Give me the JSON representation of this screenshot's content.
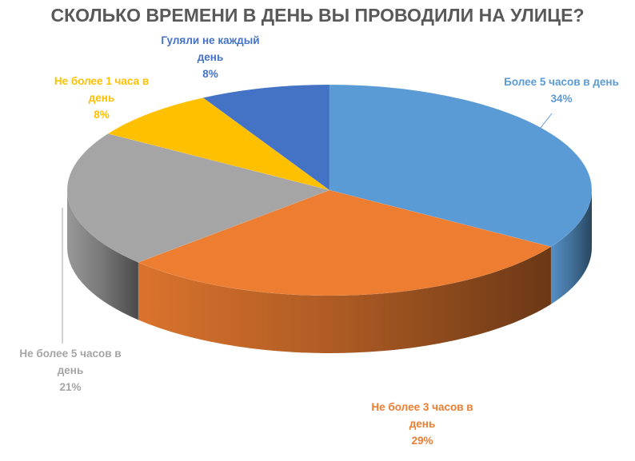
{
  "chart_data": {
    "type": "pie",
    "title": "СКОЛЬКО ВРЕМЕНИ В ДЕНЬ ВЫ ПРОВОДИЛИ НА УЛИЦЕ?",
    "slices": [
      {
        "label": "Более 5 часов в день",
        "value": 34,
        "value_label": "34%",
        "color": "#5B9BD5"
      },
      {
        "label": "Не более 3 часов в день",
        "value": 29,
        "value_label": "29%",
        "color": "#ED7D31"
      },
      {
        "label": "Не более 5 часов в день",
        "value": 21,
        "value_label": "21%",
        "color": "#A5A5A5"
      },
      {
        "label": "Не более 1 часа в день",
        "value": 8,
        "value_label": "8%",
        "color": "#FFC000"
      },
      {
        "label": "Гуляли не каждый день",
        "value": 8,
        "value_label": "8%",
        "color": "#4472C4"
      }
    ],
    "style": "3d"
  }
}
